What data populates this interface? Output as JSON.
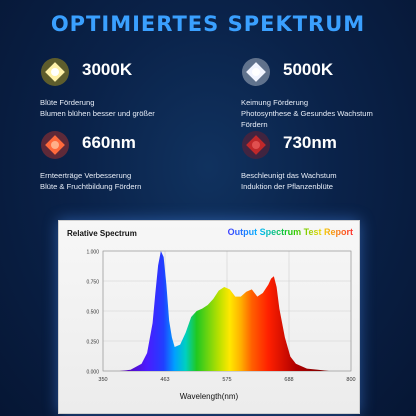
{
  "title": "OPTIMIERTES SPEKTRUM",
  "features": [
    {
      "value": "3000K",
      "lines": [
        "Blüte Förderung",
        "Blumen blühen besser und größer"
      ],
      "chip_color": "#fff1a8",
      "glow": "#ffd200"
    },
    {
      "value": "5000K",
      "lines": [
        "Keimung Förderung",
        "Photosynthese & Gesundes Wachstum",
        "Fördern"
      ],
      "chip_color": "#f2f5ff",
      "glow": "#ffffff"
    },
    {
      "value": "660nm",
      "lines": [
        "Ernteerträge Verbesserung",
        "Blüte & Fruchtbildung Fördern"
      ],
      "chip_color": "#ff6a3c",
      "glow": "#ff3b1f"
    },
    {
      "value": "730nm",
      "lines": [
        "Beschleunigt das Wachstum",
        "Induktion der Pflanzenblüte"
      ],
      "chip_color": "#c0282a",
      "glow": "#a01818"
    }
  ],
  "chart_data": {
    "type": "area",
    "title": "Output Spectrum Test Report",
    "ylabel": "Relative Spectrum",
    "xlabel": "Wavelength(nm)",
    "x_ticks": [
      "350",
      "463",
      "575",
      "688",
      "800"
    ],
    "y_ticks": [
      "0.000",
      "0.250",
      "0.500",
      "0.750",
      "1.000"
    ],
    "xlim": [
      350,
      800
    ],
    "ylim": [
      0,
      1
    ],
    "x": [
      380,
      400,
      420,
      430,
      440,
      445,
      450,
      455,
      460,
      465,
      470,
      475,
      480,
      490,
      500,
      510,
      520,
      530,
      540,
      550,
      560,
      570,
      580,
      590,
      600,
      610,
      620,
      630,
      640,
      650,
      655,
      660,
      665,
      670,
      680,
      690,
      700,
      720,
      740,
      760,
      780
    ],
    "y": [
      0.0,
      0.01,
      0.06,
      0.15,
      0.4,
      0.65,
      0.88,
      1.0,
      0.95,
      0.72,
      0.42,
      0.28,
      0.2,
      0.22,
      0.32,
      0.45,
      0.5,
      0.52,
      0.55,
      0.6,
      0.67,
      0.7,
      0.68,
      0.62,
      0.62,
      0.66,
      0.68,
      0.62,
      0.65,
      0.72,
      0.77,
      0.79,
      0.7,
      0.52,
      0.28,
      0.12,
      0.06,
      0.02,
      0.01,
      0.0,
      0.0
    ]
  }
}
